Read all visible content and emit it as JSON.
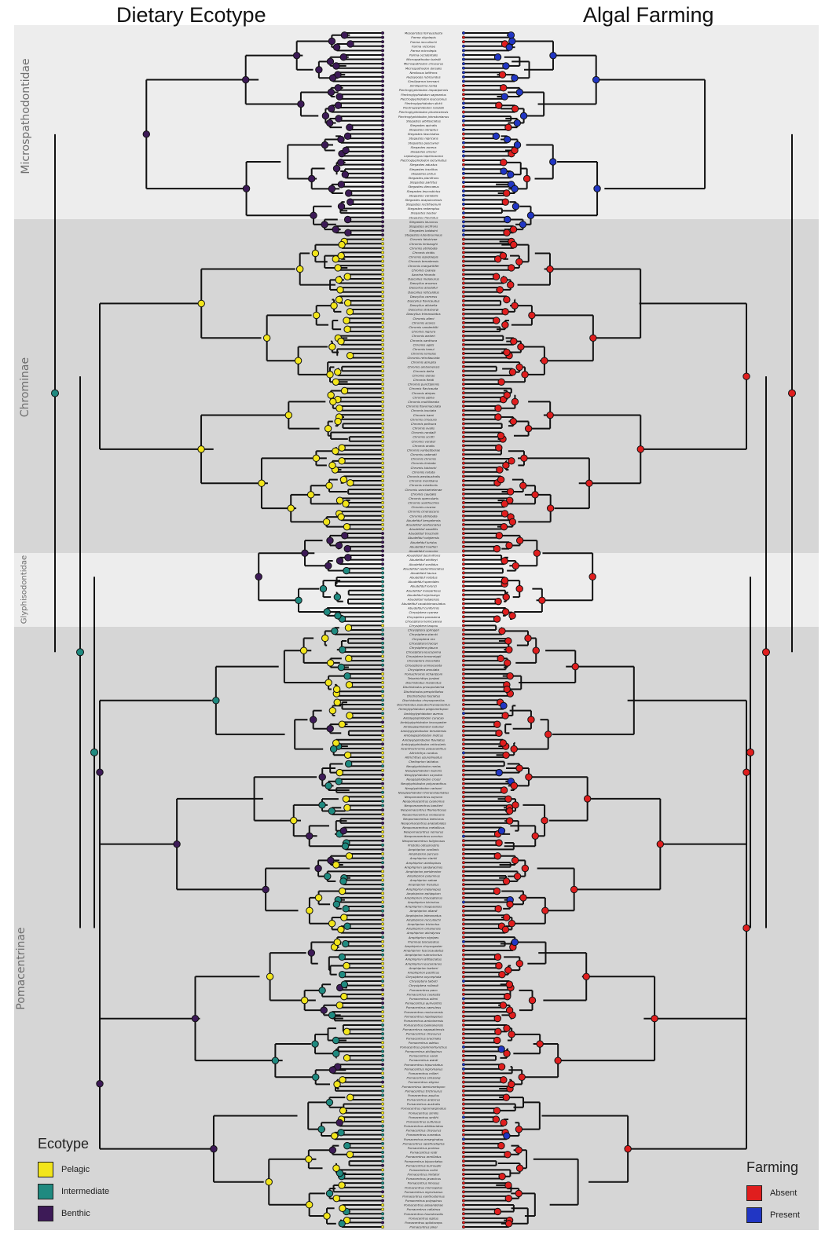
{
  "titles": {
    "left": "Dietary Ecotype",
    "right": "Algal Farming"
  },
  "clades": [
    "Microspathodontidae",
    "Chrominae",
    "Glyphisodontidae",
    "Pomacentrinae"
  ],
  "ecotype_legend": {
    "title": "Ecotype",
    "items": [
      {
        "label": "Pelagic",
        "color": "#f2e51b"
      },
      {
        "label": "Intermediate",
        "color": "#1f8a80"
      },
      {
        "label": "Benthic",
        "color": "#3d1a57"
      }
    ]
  },
  "farming_legend": {
    "title": "Farming",
    "items": [
      {
        "label": "Absent",
        "color": "#e01e1e"
      },
      {
        "label": "Present",
        "color": "#2136c4"
      }
    ]
  },
  "tip_labels": [
    "Mesopristes ferreusdusta",
    "Parma oligolepis",
    "Parma mccullochi",
    "Parma victoriae",
    "Parma microlepis",
    "Parma occidentalis",
    "Microspathodon bairdii",
    "Microspathodon chrysurus",
    "Microspathodon dorsalis",
    "Nexilosus latifrons",
    "Hypsypops rubicundus",
    "Similiparma hermani",
    "Similiparma lurida",
    "Plectroglyphidodon imparipennis",
    "Plectroglyphidodon sagmarius",
    "Plectroglyphidodon leucozonus",
    "Plectroglyphidodon dickii",
    "Plectroglyphidodon randalli",
    "Plectroglyphidodon phoenixensis",
    "Plectroglyphidodon johnstonianus",
    "Stegastes albifasciatus",
    "Stegastes apicalis",
    "Stegastes obreptus",
    "Stegastes fasciolatus",
    "Stegastes nigricans",
    "Stegastes gascoynei",
    "Stegastes aureus",
    "Stegastes emeryi",
    "Lepidozygus tapeinosoma",
    "Plectroglyphidodon lacrymatus",
    "Stegastes adustus",
    "Stegastes insolitus",
    "Stegastes pictus",
    "Stegastes planifrons",
    "Stegastes partitus",
    "Stegastes diencaeus",
    "Stegastes leucostictus",
    "Stegastes variabilis",
    "Stegastes acapulcoensis",
    "Stegastes rectifraenum",
    "Stegastes redemptus",
    "Stegastes beebei",
    "Stegastes flavilatus",
    "Stegastes leucorus",
    "Stegastes arcifrons",
    "Stegastes baldwini",
    "Stegastes luteobrunneus",
    "Chromis fatuhivae",
    "Chromis limbaughi",
    "Chromis atrilobata",
    "Chromis viridis",
    "Chromis lepidolepis",
    "Chromis ternatensis",
    "Chromis margaritifer",
    "Chromis cyanea",
    "Azurina hirundo",
    "Dascyllus melanurus",
    "Dascyllus aruanus",
    "Dascyllus abudafur",
    "Dascyllus reticulatus",
    "Dascyllus carneus",
    "Dascyllus flavicaudus",
    "Dascyllus albisella",
    "Dascyllus strasburgi",
    "Dascyllus trimaculatus",
    "Chromis alleni",
    "Chromis acares",
    "Chromis vanderbilti",
    "Chromis nigrura",
    "Chromis weberi",
    "Chromis xanthura",
    "Chromis agilis",
    "Chromis hanui",
    "Chromis iomelas",
    "Chromis retrofasciata",
    "Chromis abrupta",
    "Chromis amboinensis",
    "Chromis delta",
    "Chromis elerae",
    "Chromis fieldi",
    "Chromis punctipinnis",
    "Chromis flavicauda",
    "Chromis atripes",
    "Chromis alpha",
    "Chromis multilineata",
    "Chromis flavomaculata",
    "Chromis insolata",
    "Chromis bami",
    "Chromis chrysura",
    "Chromis pelloura",
    "Chromis ovalis",
    "Chromis randalli",
    "Chromis scotti",
    "Chromis verater",
    "Chromis analis",
    "Chromis vanbebberae",
    "Chromis cadenati",
    "Chromis chromis",
    "Chromis limbata",
    "Chromis lubbocki",
    "Chromis notata",
    "Chromis westaustralis",
    "Chromis meridiana",
    "Chromis mirationis",
    "Chromis sanctaehelenae",
    "Chromis caudalis",
    "Chromis opercularis",
    "Chromis xanthochira",
    "Chromis crusma",
    "Chromis cinerascens",
    "Chromis atrilobata",
    "Abudefduf bengalensis",
    "Abudefduf sexfasciatus",
    "Abudefduf saxatilis",
    "Abudefduf troschelii",
    "Abudefduf vaigiensis",
    "Abudefduf luridus",
    "Abudefduf hoefleri",
    "Abudefduf concolor",
    "Abudefduf declivifrons",
    "Abudefduf whitleyi",
    "Abudefduf sordidus",
    "Abudefduf septemfasciatus",
    "Abudefduf taurus",
    "Abudefduf notatus",
    "Abudefduf sparoides",
    "Abudefduf lorenzi",
    "Abudefduf margariteus",
    "Abudefduf nigrimargo",
    "Abudefduf natalensis",
    "Abudefduf caudobimaculatus",
    "Abudefduf conformis",
    "Chrysiptera cyanea",
    "Chrysiptera parasema",
    "Chrysiptera hemicyanea",
    "Chrysiptera taupou",
    "Chrysiptera springeri",
    "Chrysiptera starcki",
    "Chrysiptera rex",
    "Chrysiptera traceyi",
    "Chrysiptera glauca",
    "Chrysiptera leucopoma",
    "Chrysiptera brownriggii",
    "Chrysiptera biocellata",
    "Chrysiptera unimaculata",
    "Chrysiptera annulata",
    "Pomachromis richardsoni",
    "Teixeirichthys jordani",
    "Dischistodus melanotus",
    "Dischistodus prosopotaenia",
    "Dischistodus perspicillatus",
    "Dischistodus fasciatus",
    "Dischistodus chrysopoecilus",
    "Dischistodus pseudochrysopoecilus",
    "Hemiglyphidodon plagiometopon",
    "Amblyglyphidodon aureus",
    "Amblyglyphidodon curacao",
    "Amblyglyphidodon leucogaster",
    "Amblyglyphidodon batunai",
    "Amblyglyphidodon ternatensis",
    "Amblyglyphidodon indicus",
    "Amblyglyphidodon flavilatus",
    "Amblyglyphidodon orbicularis",
    "Acanthochromis polyacanthus",
    "Altrichthys curatus",
    "Altrichthys azurelineatus",
    "Cheiloprion labiatus",
    "Neoglyphidodon melas",
    "Neoglyphidodon nigroris",
    "Neoglyphidodon oxyodon",
    "Neoglyphidodon crossi",
    "Neoglyphidodon polyacanthus",
    "Neoglyphidodon carlsoni",
    "Neoglyphidodon thoracotaeniatus",
    "Neopomacentrus azysron",
    "Neopomacentrus cyanomos",
    "Neopomacentrus bankieri",
    "Neopomacentrus filamentosus",
    "Neopomacentrus violascens",
    "Neopomacentrus taeniurus",
    "Neopomacentrus anabatoides",
    "Neopomacentrus metallicus",
    "Neopomacentrus nemurus",
    "Neopomacentrus sororius",
    "Neopomacentrus fuliginosus",
    "Pristotis obtusirostris",
    "Amphiprion ocellaris",
    "Amphiprion percula",
    "Amphiprion clarkii",
    "Amphiprion akallopisos",
    "Amphiprion sandaracinos",
    "Amphiprion perideraion",
    "Amphiprion polymnus",
    "Amphiprion sebae",
    "Amphiprion frenatus",
    "Amphiprion melanopus",
    "Amphiprion ephippium",
    "Amphiprion chrysopterus",
    "Amphiprion bicinctus",
    "Amphiprion chagosensis",
    "Amphiprion allardi",
    "Amphiprion latezonatus",
    "Amphiprion mccullochi",
    "Amphiprion tricinctus",
    "Amphiprion omanensis",
    "Amphiprion akindynos",
    "Amphiprion nigripes",
    "Premnas biaculeatus",
    "Amphiprion chrysogaster",
    "Amphiprion fuscocaudatus",
    "Amphiprion rubrocinctus",
    "Amphiprion latifasciatus",
    "Amphiprion leucokranos",
    "Amphiprion barberi",
    "Amphiprion pacificus",
    "Chrysiptera oxycephala",
    "Chrysiptera talboti",
    "Chrysiptera rollandi",
    "Pomacentrus pavo",
    "Pomacentrus coelestis",
    "Pomacentrus alleni",
    "Pomacentrus auriventris",
    "Pomacentrus caeruleus",
    "Pomacentrus moluccensis",
    "Pomacentrus lepidogenys",
    "Pomacentrus amboinensis",
    "Pomacentrus bankanensis",
    "Pomacentrus nagasakiensis",
    "Pomacentrus chrysurus",
    "Pomacentrus brachialis",
    "Pomacentrus adelus",
    "Pomacentrus grammorhynchus",
    "Pomacentrus philippinus",
    "Pomacentrus vaiuli",
    "Pomacentrus wardi",
    "Pomacentrus tripunctatus",
    "Pomacentrus nigromanus",
    "Pomacentrus milleri",
    "Pomacentrus simsiang",
    "Pomacentrus stigma",
    "Pomacentrus taeniometopon",
    "Pomacentrus trichrourus",
    "Pomacentrus aquilus",
    "Pomacentrus arabicus",
    "Pomacentrus australis",
    "Pomacentrus nigromarginatus",
    "Pomacentrus similis",
    "Pomacentrus smithi",
    "Pomacentrus sulfureus",
    "Pomacentrus albifasciatus",
    "Pomacentrus chrysurus",
    "Pomacentrus cuneatus",
    "Pomacentrus emarginatus",
    "Pomacentrus opisthostigma",
    "Pomacentrus proteus",
    "Pomacentrus reidi",
    "Pomacentrus armillatus",
    "Pomacentrus bipunctatus",
    "Pomacentrus burroughi",
    "Pomacentrus colini",
    "Pomacentrus imitator",
    "Pomacentrus javanicus",
    "Pomacentrus limosus",
    "Pomacentrus microspilus",
    "Pomacentrus nigromanus",
    "Pomacentrus xanthosternus",
    "Pomacentrus polyspinus",
    "Pomacentrus alexanderae",
    "Pomacentrus callainus",
    "Pomacentrus fuscidorsalis",
    "Pomacentrus leptus",
    "Pomacentrus spilotoceps",
    "Pomacentrus pikei"
  ]
}
